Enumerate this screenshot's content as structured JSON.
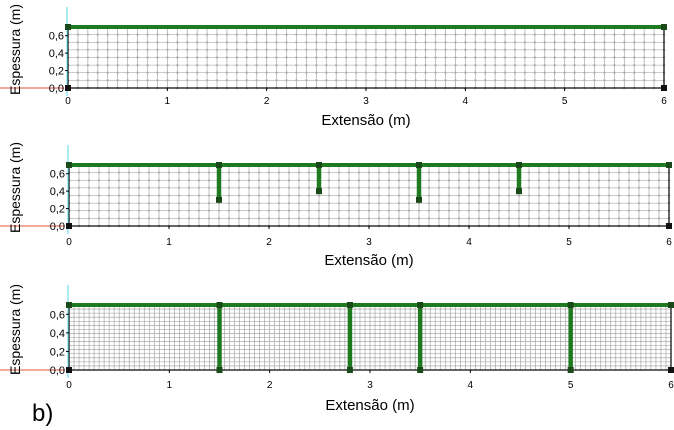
{
  "figure_label": "b)",
  "colors": {
    "mesh": "#9a9a9a",
    "mesh_node": "#b0b0b0",
    "beam": "#1f7a1f",
    "node": "#1a4a1a",
    "axis": "#000000",
    "cyan_line": "#6fe3ea",
    "red_line": "#e0553a"
  },
  "chart_data": [
    {
      "type": "mesh",
      "ylabel": "Espessura (m)",
      "xlabel": "Extensão (m)",
      "xlim": [
        0,
        6
      ],
      "ylim": [
        0,
        0.7
      ],
      "xticks": [
        "0",
        "1",
        "2",
        "3",
        "4",
        "5",
        "6"
      ],
      "yticks": [
        "0,0",
        "0,2",
        "0,4",
        "0,6"
      ],
      "top_beam_y": 0.7,
      "vertical_members": [],
      "mesh_nx": 60,
      "mesh_ny": 8
    },
    {
      "type": "mesh",
      "ylabel": "Espessura (m)",
      "xlabel": "Extensão (m)",
      "xlim": [
        0,
        6
      ],
      "ylim": [
        0,
        0.7
      ],
      "xticks": [
        "0",
        "1",
        "2",
        "3",
        "4",
        "5",
        "6"
      ],
      "yticks": [
        "0,0",
        "0,2",
        "0,4",
        "0,6"
      ],
      "top_beam_y": 0.7,
      "vertical_members": [
        {
          "x": 1.5,
          "y_bottom": 0.3
        },
        {
          "x": 2.5,
          "y_bottom": 0.4
        },
        {
          "x": 3.5,
          "y_bottom": 0.3
        },
        {
          "x": 4.5,
          "y_bottom": 0.4
        }
      ],
      "mesh_nx": 60,
      "mesh_ny": 8
    },
    {
      "type": "mesh",
      "ylabel": "Espessura (m)",
      "xlabel": "Extensão (m)",
      "xlim": [
        0,
        6
      ],
      "ylim": [
        0,
        0.7
      ],
      "xticks": [
        "0",
        "1",
        "2",
        "3",
        "4",
        "5",
        "6"
      ],
      "yticks": [
        "0,0",
        "0,2",
        "0,4",
        "0,6"
      ],
      "top_beam_y": 0.7,
      "vertical_members": [
        {
          "x": 1.5,
          "y_bottom": 0.0
        },
        {
          "x": 2.8,
          "y_bottom": 0.0
        },
        {
          "x": 3.5,
          "y_bottom": 0.0
        },
        {
          "x": 5.0,
          "y_bottom": 0.0
        }
      ],
      "mesh_nx": 120,
      "mesh_ny": 16
    }
  ]
}
